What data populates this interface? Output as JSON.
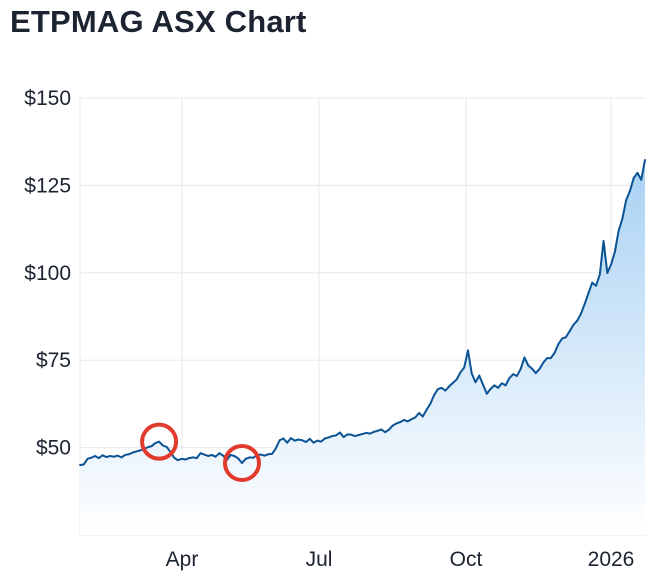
{
  "page": {
    "title": "ETPMAG ASX Chart"
  },
  "colors": {
    "line": "#0b5394",
    "area_top": "#a9d1f3",
    "area_bottom": "#ffffff",
    "grid": "#e6e8ec",
    "marker": "#e23a2c"
  },
  "chart_data": {
    "type": "area",
    "title": "ETPMAG ASX Chart",
    "xlabel": "",
    "ylabel": "",
    "ylim": [
      25,
      150
    ],
    "yticks": [
      50,
      75,
      100,
      125,
      150
    ],
    "ytick_labels": [
      "$50",
      "$75",
      "$100",
      "$125",
      "$150"
    ],
    "xticks": [
      "Apr",
      "Jul",
      "Oct",
      "2026"
    ],
    "grid": true,
    "legend": "none",
    "series": [
      {
        "values": [
          45.0,
          45.2,
          46.8,
          47.1,
          47.6,
          47.0,
          47.8,
          47.3,
          47.6,
          47.4,
          47.7,
          47.2,
          47.9,
          48.1,
          48.6,
          48.9,
          49.2,
          49.6,
          50.1,
          50.4,
          51.3,
          51.7,
          50.6,
          50.2,
          48.8,
          47.1,
          46.4,
          46.8,
          46.6,
          47.0,
          47.2,
          47.0,
          48.4,
          48.0,
          47.6,
          47.9,
          47.4,
          48.4,
          47.7,
          46.5,
          47.9,
          47.6,
          46.9,
          45.6,
          46.8,
          47.2,
          47.1,
          47.9,
          48.0,
          47.7,
          48.1,
          48.2,
          49.8,
          52.1,
          52.6,
          51.4,
          52.7,
          52.0,
          52.3,
          52.1,
          51.6,
          52.5,
          51.4,
          52.0,
          51.7,
          52.6,
          52.9,
          53.3,
          53.5,
          54.3,
          53.0,
          53.8,
          53.7,
          53.3,
          53.6,
          53.9,
          54.2,
          54.0,
          54.5,
          54.8,
          55.2,
          54.4,
          55.1,
          56.3,
          56.9,
          57.3,
          57.9,
          57.5,
          58.1,
          58.6,
          59.9,
          58.9,
          60.8,
          62.5,
          65.0,
          66.7,
          67.1,
          66.3,
          67.5,
          68.5,
          69.5,
          71.5,
          72.9,
          77.8,
          71.2,
          68.7,
          70.6,
          68.0,
          65.4,
          66.8,
          67.8,
          67.1,
          68.4,
          67.8,
          69.9,
          71.0,
          70.5,
          72.5,
          75.8,
          73.5,
          72.6,
          71.3,
          72.5,
          74.3,
          75.6,
          75.6,
          77.1,
          79.6,
          81.2,
          81.6,
          83.3,
          85.1,
          86.3,
          88.3,
          91.1,
          94.2,
          97.2,
          96.3,
          99.5,
          109.1,
          99.9,
          102.4,
          106.0,
          112.0,
          115.5,
          120.8,
          123.4,
          127.1,
          128.6,
          126.6,
          132.3
        ]
      }
    ],
    "annotations": [
      {
        "type": "circle",
        "index": 21,
        "value": 51.7
      },
      {
        "type": "circle",
        "index": 43,
        "value": 45.6
      }
    ]
  }
}
